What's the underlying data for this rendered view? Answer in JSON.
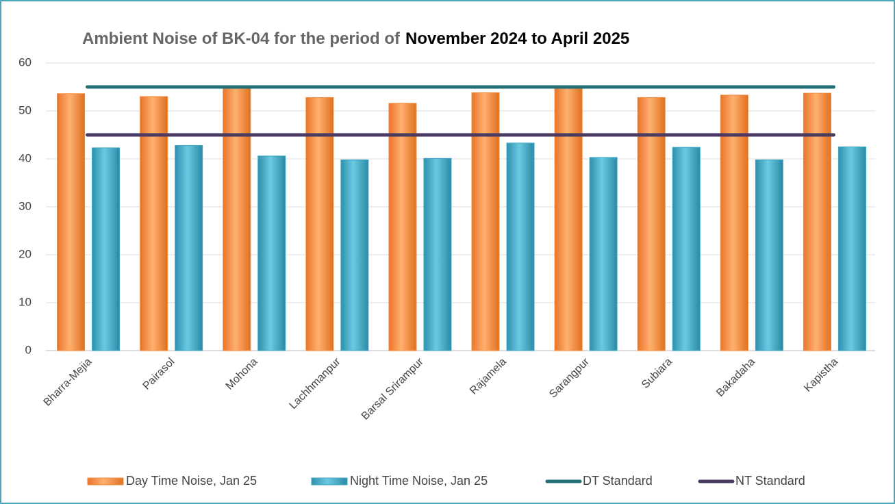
{
  "chart_data": {
    "type": "bar",
    "title_parts": [
      "Ambient Noise of BK-04 for the period of",
      "November 2024 to April 2025"
    ],
    "categories": [
      "Bharra-Mejia",
      "Pairasol",
      "Mohona",
      "Lachhmanpur",
      "Barsal Srirampur",
      "Rajamela",
      "Sarangpur",
      "Subiara",
      "Bakadaha",
      "Kapistha"
    ],
    "series": [
      {
        "name": "Day Time Noise, Jan 25",
        "type": "bar",
        "color": "#f28a3a",
        "values": [
          53.6,
          53.0,
          54.8,
          52.8,
          51.6,
          53.8,
          54.8,
          52.8,
          53.3,
          53.7
        ]
      },
      {
        "name": "Night Time Noise, Jan 25",
        "type": "bar",
        "color": "#3fa9c6",
        "values": [
          42.3,
          42.8,
          40.6,
          39.8,
          40.1,
          43.3,
          40.3,
          42.4,
          39.8,
          42.5
        ]
      },
      {
        "name": "DT Standard",
        "type": "line",
        "color": "#216f78",
        "values": [
          55,
          55,
          55,
          55,
          55,
          55,
          55,
          55,
          55,
          55
        ]
      },
      {
        "name": "NT Standard",
        "type": "line",
        "color": "#4a3a63",
        "values": [
          45,
          45,
          45,
          45,
          45,
          45,
          45,
          45,
          45,
          45
        ]
      }
    ],
    "ylim": [
      0,
      60
    ],
    "yticks": [
      0,
      10,
      20,
      30,
      40,
      50,
      60
    ],
    "grid": true,
    "legend": "bottom"
  }
}
